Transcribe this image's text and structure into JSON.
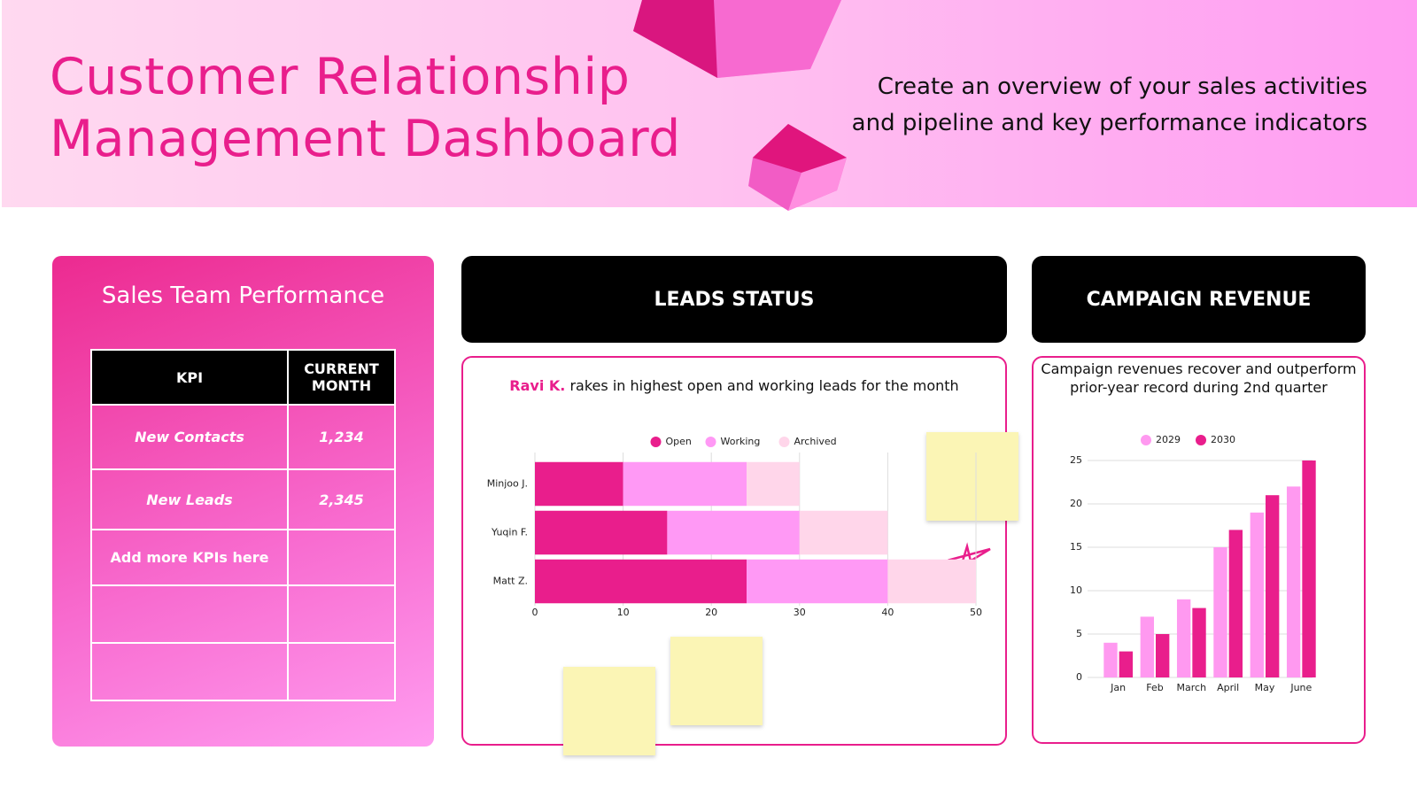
{
  "header": {
    "title": "Customer Relationship Management Dashboard",
    "description": "Create an overview of your sales activities and pipeline and key performance indicators"
  },
  "kpi_panel": {
    "title": "Sales Team Performance",
    "table": {
      "header": [
        "KPI",
        "CURRENT MONTH"
      ],
      "rows": [
        [
          "New Contacts",
          "1,234"
        ],
        [
          "New Leads",
          "2,345"
        ],
        [
          "Add more KPIs here"
        ]
      ]
    }
  },
  "chart_data": [
    {
      "type": "bar",
      "orientation": "horizontal",
      "stacked": true,
      "title": "LEADS STATUS",
      "subtitle_highlight": "Ravi K.",
      "subtitle": "rakes in highest open and working leads for the month",
      "categories": [
        "Minjoo J.",
        "Yuqin F.",
        "Matt Z."
      ],
      "series": [
        {
          "name": "Open",
          "color": "#e91e8c",
          "values": [
            10,
            15,
            24
          ]
        },
        {
          "name": "Working",
          "color": "#ff99f5",
          "values": [
            14,
            15,
            16
          ]
        },
        {
          "name": "Archived",
          "color": "#ffd6ea",
          "values": [
            6,
            10,
            10
          ]
        }
      ],
      "xlim": [
        0,
        50
      ],
      "xticks": [
        0,
        10,
        20,
        30,
        40,
        50
      ],
      "grid": true,
      "legend": "top"
    },
    {
      "type": "bar",
      "title": "CAMPAIGN REVENUE",
      "subtitle": "Campaign revenues recover and outperform prior-year record during 2nd quarter",
      "categories": [
        "Jan",
        "Feb",
        "March",
        "April",
        "May",
        "June"
      ],
      "series": [
        {
          "name": "2029",
          "color": "#ff99f0",
          "values": [
            4,
            7,
            9,
            15,
            19,
            22
          ]
        },
        {
          "name": "2030",
          "color": "#e91e8c",
          "values": [
            3,
            5,
            8,
            17,
            21,
            25
          ]
        }
      ],
      "ylim": [
        0,
        25
      ],
      "yticks": [
        0,
        5,
        10,
        15,
        20,
        25
      ],
      "grid": true,
      "legend": "top"
    }
  ]
}
